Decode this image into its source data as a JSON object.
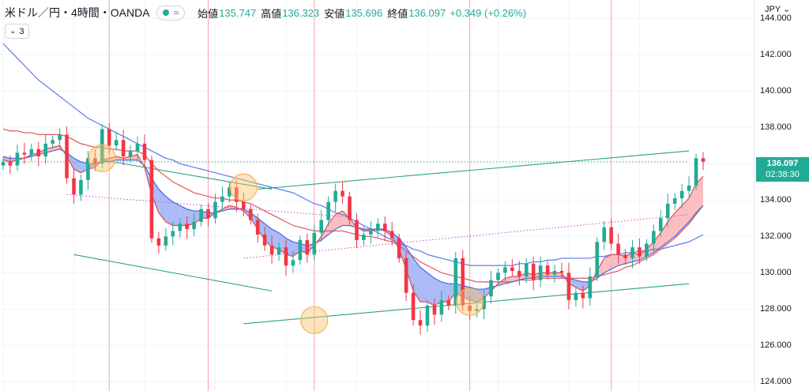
{
  "header": {
    "symbol": "米ドル／円・4時間・OANDA",
    "status_wave": "≈",
    "ohlc": [
      {
        "k": "始値",
        "v": "135.747"
      },
      {
        "k": "高値",
        "v": "136.323"
      },
      {
        "k": "安値",
        "v": "135.696"
      },
      {
        "k": "終値",
        "v": "136.097"
      },
      {
        "k": "",
        "v": "+0.349 (+0.26%)"
      }
    ]
  },
  "study_count": "3",
  "currency": "JPY",
  "last_price": {
    "price": "136.097",
    "countdown": "02:38:30"
  },
  "colors": {
    "up": "#22ab94",
    "down": "#f23645",
    "blue_ma": "#5b7bea",
    "red_ma": "#e0575b",
    "trendline": "#2aa37a",
    "pivot": "#f5b25a",
    "pink_fill": "#f7a8ad",
    "blue_fill": "#8ea4f4"
  },
  "chart_data": {
    "type": "candlestick",
    "ylim": [
      123.5,
      145
    ],
    "yticks": [
      "144.000",
      "142.000",
      "140.000",
      "138.000",
      "136.000",
      "134.000",
      "132.000",
      "130.000",
      "128.000",
      "126.000",
      "124.000"
    ],
    "x_count": 100,
    "close": [
      136.1,
      135.9,
      136.6,
      136.5,
      136.8,
      136.4,
      137.1,
      137.3,
      137.6,
      135.2,
      134.3,
      135.1,
      136.3,
      136.0,
      137.9,
      137.0,
      137.3,
      136.4,
      136.7,
      137.1,
      136.2,
      131.9,
      131.5,
      132.0,
      132.3,
      132.7,
      132.4,
      132.8,
      133.5,
      133.0,
      133.9,
      134.2,
      134.7,
      133.9,
      133.5,
      132.9,
      132.1,
      131.5,
      131.0,
      131.4,
      130.4,
      130.7,
      131.8,
      131.0,
      132.2,
      132.9,
      133.9,
      134.5,
      134.2,
      132.9,
      131.8,
      132.1,
      132.3,
      132.7,
      132.3,
      131.9,
      130.8,
      128.9,
      127.4,
      127.1,
      128.2,
      127.7,
      128.5,
      128.2,
      130.8,
      128.2,
      127.9,
      128.0,
      128.7,
      129.6,
      130.0,
      130.3,
      130.1,
      129.8,
      130.5,
      129.6,
      130.4,
      129.9,
      130.1,
      130.0,
      128.5,
      128.9,
      128.6,
      129.8,
      131.7,
      132.5,
      131.6,
      131.0,
      130.8,
      131.4,
      130.9,
      131.6,
      132.3,
      133.0,
      133.8,
      134.1,
      134.5,
      134.8,
      136.3,
      136.1
    ],
    "ma_fast": [
      136.2,
      136.1,
      136.2,
      136.3,
      136.5,
      136.6,
      136.8,
      136.9,
      137.0,
      136.4,
      135.7,
      135.5,
      135.7,
      135.8,
      136.2,
      136.3,
      136.4,
      136.3,
      136.4,
      136.5,
      135.8,
      134.3,
      133.3,
      132.8,
      132.6,
      132.6,
      132.6,
      132.7,
      133.0,
      133.0,
      133.3,
      133.5,
      133.7,
      133.6,
      133.4,
      133.0,
      132.4,
      131.8,
      131.4,
      131.3,
      131.0,
      130.9,
      131.2,
      131.1,
      131.5,
      132.0,
      132.7,
      133.2,
      133.4,
      133.0,
      132.5,
      132.3,
      132.3,
      132.4,
      132.3,
      132.0,
      131.3,
      130.2,
      129.0,
      128.4,
      128.4,
      128.2,
      128.4,
      128.4,
      128.9,
      128.7,
      128.5,
      128.4,
      128.6,
      129.0,
      129.4,
      129.7,
      129.8,
      129.8,
      130.0,
      129.9,
      130.0,
      130.0,
      130.0,
      130.0,
      129.4,
      129.2,
      129.0,
      129.3,
      130.1,
      130.8,
      131.0,
      131.0,
      130.9,
      131.1,
      131.0,
      131.3,
      131.7,
      132.2,
      132.8,
      133.3,
      133.7,
      134.1,
      134.9,
      135.3
    ],
    "ma_mid": [
      136.4,
      136.3,
      136.3,
      136.3,
      136.4,
      136.5,
      136.6,
      136.7,
      136.8,
      136.6,
      136.3,
      136.1,
      136.0,
      136.0,
      136.1,
      136.1,
      136.2,
      136.2,
      136.2,
      136.2,
      135.9,
      135.2,
      134.6,
      134.2,
      133.9,
      133.7,
      133.5,
      133.4,
      133.4,
      133.3,
      133.3,
      133.4,
      133.5,
      133.5,
      133.5,
      133.3,
      133.0,
      132.7,
      132.4,
      132.2,
      131.9,
      131.7,
      131.6,
      131.5,
      131.6,
      131.8,
      132.1,
      132.4,
      132.6,
      132.6,
      132.5,
      132.4,
      132.4,
      132.4,
      132.4,
      132.2,
      131.9,
      131.4,
      130.8,
      130.3,
      130.0,
      129.7,
      129.5,
      129.4,
      129.4,
      129.3,
      129.2,
      129.1,
      129.1,
      129.2,
      129.3,
      129.4,
      129.5,
      129.6,
      129.7,
      129.7,
      129.8,
      129.8,
      129.8,
      129.8,
      129.7,
      129.6,
      129.5,
      129.5,
      129.7,
      130.0,
      130.2,
      130.4,
      130.5,
      130.6,
      130.7,
      130.9,
      131.1,
      131.4,
      131.7,
      132.0,
      132.4,
      132.8,
      133.3,
      133.7
    ],
    "ma_red_long": [
      137.9,
      137.8,
      137.8,
      137.7,
      137.7,
      137.6,
      137.6,
      137.6,
      137.6,
      137.5,
      137.3,
      137.1,
      137.0,
      136.9,
      136.9,
      136.8,
      136.8,
      136.7,
      136.7,
      136.7,
      136.5,
      136.0,
      135.6,
      135.3,
      135.0,
      134.8,
      134.6,
      134.4,
      134.3,
      134.2,
      134.1,
      134.1,
      134.0,
      134.0,
      133.9,
      133.8,
      133.6,
      133.4,
      133.2,
      133.0,
      132.8,
      132.6,
      132.5,
      132.4,
      132.3,
      132.3,
      132.3,
      132.3,
      132.3,
      132.2,
      132.1,
      132.0,
      132.0,
      131.9,
      131.8,
      131.7,
      131.5,
      131.2,
      130.9,
      130.6,
      130.4,
      130.2,
      130.0,
      129.9,
      129.8,
      129.7,
      129.6,
      129.5,
      129.5,
      129.5,
      129.5,
      129.5,
      129.5,
      129.6,
      129.6,
      129.6,
      129.7,
      129.7,
      129.7,
      129.7,
      129.7,
      129.7,
      129.7,
      129.7,
      129.8,
      129.9,
      130.0,
      130.1,
      130.3,
      130.4,
      130.6,
      130.8,
      131.0,
      131.3,
      131.6,
      131.9,
      132.3,
      132.7,
      133.2,
      133.7
    ],
    "ma_blue_long": [
      142.6,
      142.2,
      141.8,
      141.4,
      141.0,
      140.6,
      140.3,
      140.0,
      139.7,
      139.4,
      139.1,
      138.8,
      138.5,
      138.3,
      138.1,
      137.9,
      137.7,
      137.5,
      137.3,
      137.1,
      136.9,
      136.7,
      136.5,
      136.3,
      136.2,
      136.0,
      135.9,
      135.8,
      135.7,
      135.6,
      135.5,
      135.4,
      135.3,
      135.2,
      135.1,
      135.0,
      134.9,
      134.8,
      134.7,
      134.6,
      134.5,
      134.4,
      134.2,
      134.0,
      133.8,
      133.7,
      133.5,
      133.3,
      133.2,
      133.0,
      132.8,
      132.6,
      132.4,
      132.2,
      132.0,
      131.8,
      131.6,
      131.5,
      131.3,
      131.2,
      131.0,
      130.9,
      130.8,
      130.7,
      130.6,
      130.5,
      130.4,
      130.4,
      130.4,
      130.4,
      130.4,
      130.4,
      130.4,
      130.5,
      130.5,
      130.6,
      130.6,
      130.7,
      130.7,
      130.8,
      130.8,
      130.8,
      130.8,
      130.8,
      130.9,
      130.9,
      131.0,
      131.0,
      131.1,
      131.1,
      131.2,
      131.2,
      131.3,
      131.3,
      131.4,
      131.5,
      131.6,
      131.7,
      131.9,
      132.1
    ],
    "trendlines": [
      {
        "x": [
          14,
          38
        ],
        "y": [
          136.2,
          134.6
        ]
      },
      {
        "x": [
          10,
          38
        ],
        "y": [
          131.0,
          129.0
        ]
      },
      {
        "x": [
          36,
          97
        ],
        "y": [
          134.6,
          136.7
        ]
      },
      {
        "x": [
          34,
          97
        ],
        "y": [
          127.2,
          129.4
        ]
      }
    ],
    "dotted_lines": [
      {
        "x": [
          9,
          48
        ],
        "y": [
          134.3,
          133.1
        ],
        "color": "#d44acc"
      },
      {
        "x": [
          34,
          97
        ],
        "y": [
          130.8,
          133.2
        ],
        "color": "#d44acc"
      },
      {
        "x": [
          0,
          97
        ],
        "y": [
          136.1,
          136.1
        ],
        "color": "#22ab94"
      }
    ],
    "pivots": [
      {
        "x": 14,
        "y": 136.3
      },
      {
        "x": 34,
        "y": 134.7
      },
      {
        "x": 44,
        "y": 127.4
      },
      {
        "x": 66,
        "y": 128.4
      }
    ],
    "session_lines_x": [
      15,
      29,
      44,
      66,
      86
    ]
  }
}
